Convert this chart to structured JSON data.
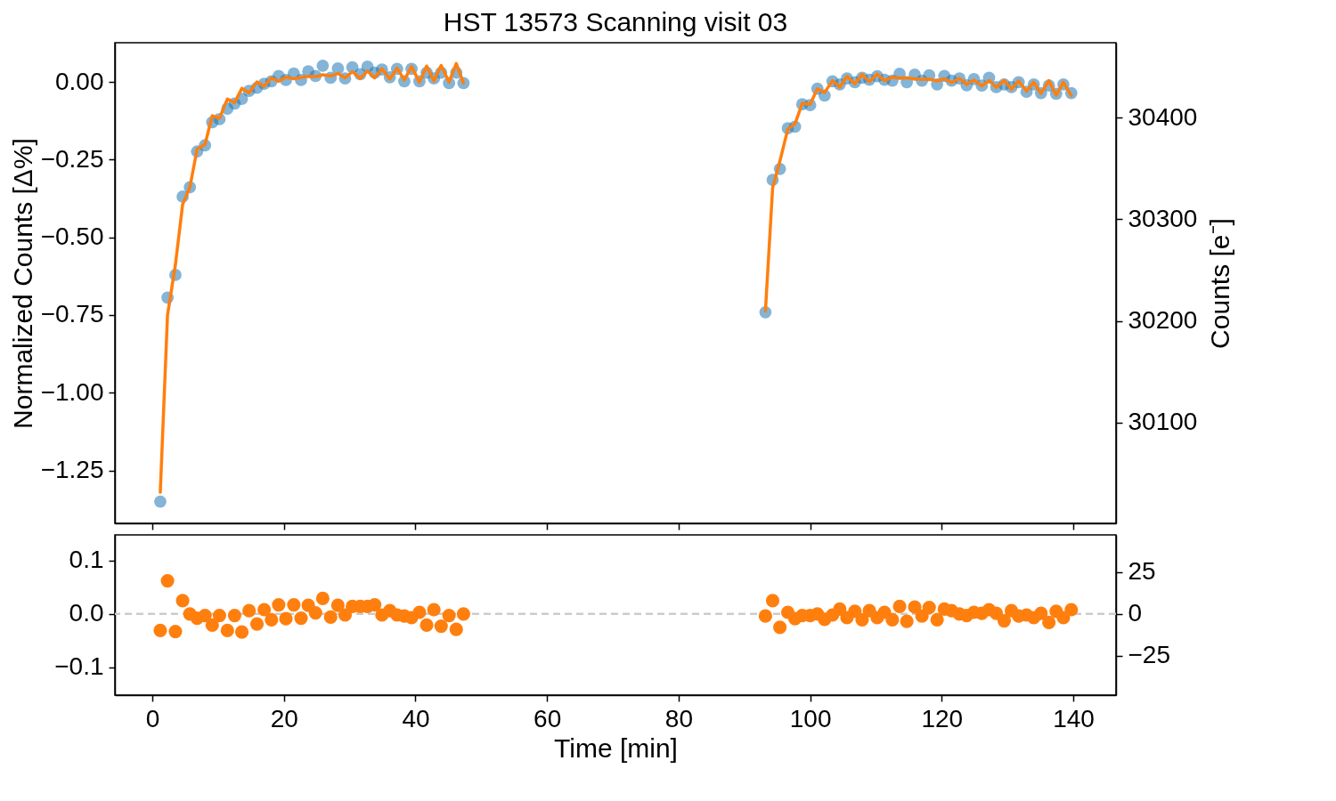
{
  "chart_data": [
    {
      "type": "scatter",
      "title": "HST 13573 Scanning visit 03",
      "ylabel": "Normalized Counts [Δ%]",
      "y2label": "Counts [e⁻]",
      "xlim": [
        -5.7,
        146.5
      ],
      "xticks": [
        0,
        20,
        40,
        60,
        80,
        100,
        120,
        140
      ],
      "ylim": [
        -1.42,
        0.126
      ],
      "yticks": [
        {
          "value": -1.25,
          "label": "−1.25"
        },
        {
          "value": -1.0,
          "label": "−1.00"
        },
        {
          "value": -0.75,
          "label": "−0.75"
        },
        {
          "value": -0.5,
          "label": "−0.50"
        },
        {
          "value": -0.25,
          "label": "−0.25"
        },
        {
          "value": 0,
          "label": "0.00"
        }
      ],
      "y2lim": [
        30001,
        30473.5
      ],
      "y2ticks": [
        {
          "value": 30100,
          "label": "30100"
        },
        {
          "value": 30200,
          "label": "30200"
        },
        {
          "value": 30300,
          "label": "30300"
        },
        {
          "value": 30400,
          "label": "30400"
        }
      ],
      "tick_labels": "y",
      "grid": false,
      "marker": "circle",
      "series": [
        {
          "color": "#1f77b4",
          "x": [
            1.2,
            2.3,
            3.5,
            4.6,
            5.7,
            6.8,
            8.0,
            9.1,
            10.2,
            11.4,
            12.5,
            13.6,
            14.7,
            15.9,
            17.0,
            18.1,
            19.2,
            20.3,
            21.5,
            22.6,
            23.7,
            24.8,
            25.9,
            27.1,
            28.2,
            29.3,
            30.4,
            31.6,
            32.7,
            33.8,
            34.9,
            36.1,
            37.2,
            38.3,
            39.4,
            40.6,
            41.7,
            42.8,
            43.9,
            45.1,
            46.2,
            47.3,
            93.2,
            94.3,
            95.4,
            96.6,
            97.7,
            98.8,
            100.0,
            101.1,
            102.2,
            103.4,
            104.5,
            105.6,
            106.8,
            107.9,
            109.0,
            110.2,
            111.3,
            112.5,
            113.6,
            114.7,
            115.9,
            117.0,
            118.1,
            119.3,
            120.4,
            121.5,
            122.7,
            123.8,
            124.9,
            126.1,
            127.2,
            128.3,
            129.5,
            130.6,
            131.7,
            132.9,
            134.0,
            135.1,
            136.3,
            137.4,
            138.5,
            139.7
          ],
          "values": [
            -1.35,
            -0.694,
            -0.621,
            -0.369,
            -0.339,
            -0.224,
            -0.204,
            -0.13,
            -0.12,
            -0.086,
            -0.07,
            -0.055,
            -0.029,
            -0.019,
            -0.006,
            0.002,
            0.019,
            0.006,
            0.027,
            0.006,
            0.034,
            0.019,
            0.052,
            0.013,
            0.043,
            0.011,
            0.047,
            0.025,
            0.049,
            0.03,
            0.04,
            0.015,
            0.042,
            0.002,
            0.042,
            0.002,
            0.03,
            0.011,
            0.03,
            -0.004,
            0.03,
            -0.004,
            -0.741,
            -0.315,
            -0.28,
            -0.149,
            -0.144,
            -0.072,
            -0.075,
            -0.022,
            -0.044,
            0.002,
            -0.008,
            0.011,
            -0.001,
            0.013,
            0.007,
            0.018,
            0.007,
            0.004,
            0.026,
            -0.001,
            0.023,
            0.004,
            0.021,
            -0.008,
            0.019,
            0.004,
            0.011,
            -0.011,
            0.009,
            -0.012,
            0.013,
            -0.017,
            -0.008,
            -0.017,
            -0.001,
            -0.032,
            -0.008,
            -0.036,
            -0.012,
            -0.038,
            -0.008,
            -0.036
          ]
        },
        {
          "type": "line",
          "marker": "none",
          "line_style": "solid",
          "color": "#ff7f0e",
          "x": [
            1.2,
            2.3,
            3.5,
            4.6,
            5.7,
            6.8,
            8.0,
            9.1,
            10.2,
            11.4,
            12.5,
            13.6,
            14.7,
            15.9,
            17.0,
            18.1,
            19.2,
            20.3,
            21.5,
            22.6,
            23.7,
            24.8,
            25.9,
            27.1,
            28.2,
            29.3,
            30.4,
            31.6,
            32.7,
            33.8,
            34.9,
            36.1,
            37.2,
            38.3,
            39.4,
            40.6,
            41.7,
            42.8,
            43.9,
            45.1,
            46.2,
            47.3
          ],
          "values": [
            -1.32,
            -0.75,
            -0.588,
            -0.394,
            -0.339,
            -0.216,
            -0.201,
            -0.109,
            -0.117,
            -0.055,
            -0.067,
            -0.021,
            -0.035,
            0.0,
            -0.014,
            0.013,
            0.002,
            0.015,
            0.01,
            0.014,
            0.018,
            0.017,
            0.023,
            0.019,
            0.027,
            0.013,
            0.033,
            0.011,
            0.035,
            0.013,
            0.042,
            0.009,
            0.044,
            0.006,
            0.049,
            -0.001,
            0.051,
            0.003,
            0.053,
            -0.001,
            0.059,
            -0.004
          ]
        },
        {
          "type": "line",
          "marker": "none",
          "line_style": "solid",
          "color": "#ff7f0e",
          "x": [
            93.2,
            94.3,
            95.4,
            96.6,
            97.7,
            98.8,
            100.0,
            101.1,
            102.2,
            103.4,
            104.5,
            105.6,
            106.8,
            107.9,
            109.0,
            110.2,
            111.3,
            112.5,
            113.6,
            114.7,
            115.9,
            117.0,
            118.1,
            119.3,
            120.4,
            121.5,
            122.7,
            123.8,
            124.9,
            126.1,
            127.2,
            128.3,
            129.5,
            130.6,
            131.7,
            132.9,
            134.0,
            135.1,
            136.3,
            137.4,
            138.5,
            139.7
          ],
          "values": [
            -0.737,
            -0.34,
            -0.255,
            -0.152,
            -0.135,
            -0.069,
            -0.072,
            -0.022,
            -0.034,
            0.004,
            -0.017,
            0.018,
            -0.006,
            0.024,
            0.001,
            0.025,
            0.004,
            0.015,
            0.012,
            0.013,
            0.01,
            0.008,
            0.009,
            0.003,
            0.01,
            -0.002,
            0.011,
            -0.008,
            0.006,
            -0.013,
            0.005,
            -0.018,
            0.005,
            -0.023,
            0.003,
            -0.03,
            -0.001,
            -0.037,
            0.004,
            -0.043,
            -0.001,
            -0.044
          ]
        }
      ]
    },
    {
      "type": "scatter",
      "xlabel": "Time [min]",
      "xlim": [
        -5.7,
        146.5
      ],
      "xticks": [
        0,
        20,
        40,
        60,
        80,
        100,
        120,
        140
      ],
      "ylim": [
        -0.152,
        0.148
      ],
      "yticks": [
        {
          "value": -0.1,
          "label": "−0.1"
        },
        {
          "value": 0,
          "label": "0.0"
        },
        {
          "value": 0.1,
          "label": "0.1"
        }
      ],
      "y2lim": [
        -48.4,
        47.3
      ],
      "y2ticks": [
        {
          "value": -25,
          "label": "−25"
        },
        0,
        25
      ],
      "grid": false,
      "marker": "circle",
      "ref_lines": [
        {
          "axis": "y",
          "value": 0,
          "color": "#cccccc",
          "line_style": "dashed"
        }
      ],
      "series": [
        {
          "color": "#ff7f0e",
          "x": [
            1.2,
            2.3,
            3.5,
            4.6,
            5.7,
            6.8,
            8.0,
            9.1,
            10.2,
            11.4,
            12.5,
            13.6,
            14.7,
            15.9,
            17.0,
            18.1,
            19.2,
            20.3,
            21.5,
            22.6,
            23.7,
            24.8,
            25.9,
            27.1,
            28.2,
            29.3,
            30.4,
            31.6,
            32.7,
            33.8,
            34.9,
            36.1,
            37.2,
            38.3,
            39.4,
            40.6,
            41.7,
            42.8,
            43.9,
            45.1,
            46.2,
            47.3,
            93.2,
            94.3,
            95.4,
            96.6,
            97.7,
            98.8,
            100.0,
            101.1,
            102.2,
            103.4,
            104.5,
            105.6,
            106.8,
            107.9,
            109.0,
            110.2,
            111.3,
            112.5,
            113.6,
            114.7,
            115.9,
            117.0,
            118.1,
            119.3,
            120.4,
            121.5,
            122.7,
            123.8,
            124.9,
            126.1,
            127.2,
            128.3,
            129.5,
            130.6,
            131.7,
            132.9,
            134.0,
            135.1,
            136.3,
            137.4,
            138.5,
            139.7
          ],
          "values": [
            -0.031,
            0.062,
            -0.033,
            0.025,
            0.0,
            -0.008,
            -0.003,
            -0.021,
            -0.003,
            -0.031,
            -0.003,
            -0.034,
            0.006,
            -0.019,
            0.008,
            -0.011,
            0.017,
            -0.009,
            0.017,
            -0.008,
            0.016,
            0.002,
            0.029,
            -0.006,
            0.016,
            -0.002,
            0.014,
            0.014,
            0.014,
            0.017,
            -0.002,
            0.006,
            -0.002,
            -0.004,
            -0.007,
            0.003,
            -0.021,
            0.008,
            -0.023,
            -0.003,
            -0.029,
            0.0,
            -0.004,
            0.025,
            -0.025,
            0.003,
            -0.009,
            -0.003,
            -0.003,
            0.0,
            -0.01,
            -0.002,
            0.009,
            -0.007,
            0.005,
            -0.011,
            0.006,
            -0.007,
            0.003,
            -0.011,
            0.014,
            -0.014,
            0.013,
            -0.004,
            0.012,
            -0.011,
            0.009,
            0.006,
            0.0,
            -0.003,
            0.003,
            0.001,
            0.008,
            0.001,
            -0.013,
            0.006,
            -0.004,
            -0.002,
            -0.007,
            0.001,
            -0.016,
            0.005,
            -0.007,
            0.008
          ]
        }
      ]
    }
  ]
}
